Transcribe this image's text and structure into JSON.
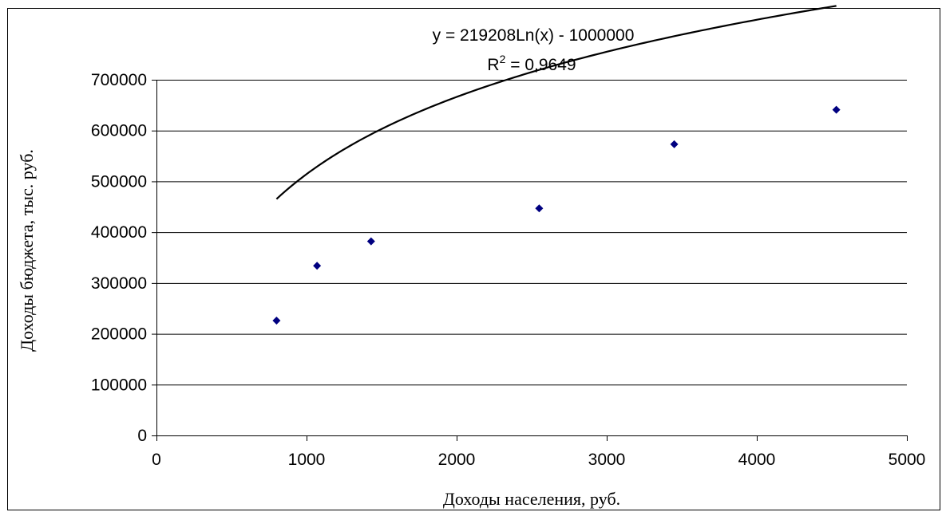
{
  "chart_data": {
    "type": "scatter",
    "xlabel": "Доходы населения, руб.",
    "ylabel": "Доходы бюджета, тыс. руб.",
    "xlim": [
      0,
      5000
    ],
    "ylim": [
      0,
      700000
    ],
    "x_ticks": [
      0,
      1000,
      2000,
      3000,
      4000,
      5000
    ],
    "x_tick_labels": [
      "0",
      "1000",
      "2000",
      "3000",
      "4000",
      "5000"
    ],
    "y_ticks": [
      0,
      100000,
      200000,
      300000,
      400000,
      500000,
      600000,
      700000
    ],
    "y_tick_labels": [
      "0",
      "100000",
      "200000",
      "300000",
      "400000",
      "500000",
      "600000",
      "700000"
    ],
    "grid": "horizontal",
    "series": [
      {
        "marker": "diamond",
        "color": "#000080",
        "points": [
          {
            "x": 800,
            "y": 226000
          },
          {
            "x": 1070,
            "y": 334000
          },
          {
            "x": 1430,
            "y": 382000
          },
          {
            "x": 2550,
            "y": 447000
          },
          {
            "x": 3450,
            "y": 573000
          },
          {
            "x": 4530,
            "y": 641000
          }
        ]
      }
    ],
    "trendline": {
      "type": "logarithmic",
      "a": 219208,
      "b": -1000000,
      "x_range": [
        800,
        4530
      ],
      "color": "#000000"
    },
    "annotation": {
      "equation": "y = 219208Ln(x) - 1000000",
      "r2_prefix": "R",
      "r2_superscript": "2",
      "r2_value": " = 0,9649"
    }
  }
}
